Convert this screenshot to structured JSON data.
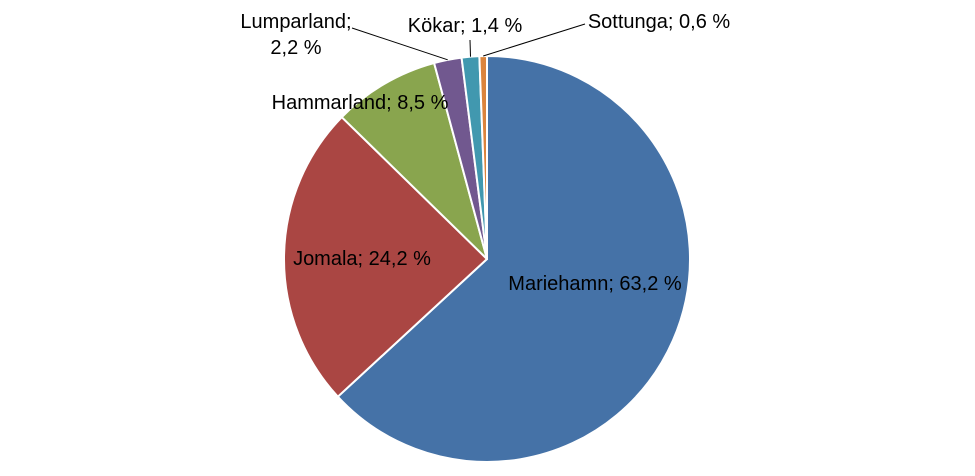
{
  "chart_data": {
    "type": "pie",
    "title": "",
    "legend": "none",
    "slices": [
      {
        "label": "Mariehamn; 63,2 %",
        "name": "Mariehamn",
        "value": 63.2,
        "color": "#4572A7"
      },
      {
        "label": "Jomala; 24,2 %",
        "name": "Jomala",
        "value": 24.2,
        "color": "#AA4643"
      },
      {
        "label": "Hammarland; 8,5 %",
        "name": "Hammarland",
        "value": 8.5,
        "color": "#89A54E"
      },
      {
        "label_lines": [
          "Lumparland;",
          "2,2 %"
        ],
        "name": "Lumparland",
        "value": 2.2,
        "color": "#71588F"
      },
      {
        "label": "Kökar; 1,4 %",
        "name": "Kökar",
        "value": 1.4,
        "color": "#4198AF"
      },
      {
        "label": "Sottunga; 0,6 %",
        "name": "Sottunga",
        "value": 0.6,
        "color": "#DB843D"
      }
    ]
  }
}
